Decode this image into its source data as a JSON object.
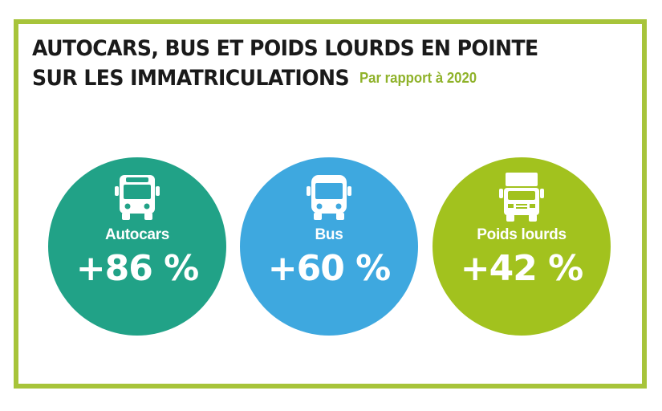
{
  "title": {
    "line1": "AUTOCARS, BUS ET POIDS LOURDS EN POINTE",
    "line2": "SUR LES IMMATRICULATIONS",
    "subtitle": "Par rapport à 2020"
  },
  "colors": {
    "border": "#a7c43a",
    "autocars": "#21a287",
    "bus": "#3ea8df",
    "poids_lourds": "#a2c21e",
    "subtitle": "#8fb22a"
  },
  "stats": [
    {
      "label": "Autocars",
      "value": "+86 %",
      "icon": "coach-icon"
    },
    {
      "label": "Bus",
      "value": "+60 %",
      "icon": "bus-icon"
    },
    {
      "label": "Poids lourds",
      "value": "+42 %",
      "icon": "truck-icon"
    }
  ]
}
